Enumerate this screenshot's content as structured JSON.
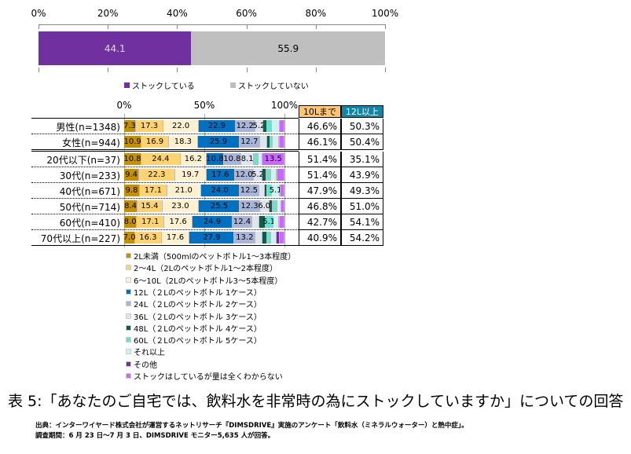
{
  "chart_data": [
    {
      "type": "bar",
      "orientation": "horizontal",
      "stacked": true,
      "xticks": [
        "0%",
        "20%",
        "40%",
        "60%",
        "80%",
        "100%"
      ],
      "xlim": [
        0,
        100
      ],
      "series": [
        {
          "name": "ストックしている",
          "values": [
            44.1
          ],
          "color": "#7030A0"
        },
        {
          "name": "ストックしていない",
          "values": [
            55.9
          ],
          "color": "#BFBFBF"
        }
      ],
      "legend_position": "bottom"
    },
    {
      "type": "bar",
      "orientation": "horizontal",
      "stacked": true,
      "xticks": [
        "0%",
        "50%",
        "100%"
      ],
      "xlim": [
        0,
        100
      ],
      "categories": [
        "男性(n=1348)",
        "女性(n=944)",
        "20代以下(n=37)",
        "30代(n=233)",
        "40代(n=671)",
        "50代(n=714)",
        "60代(n=410)",
        "70代以上(n=227)"
      ],
      "series": [
        {
          "name": "2L未満（500mlのペットボトル1～3本程度）",
          "color": "#C59000",
          "values": [
            7.3,
            10.9,
            10.8,
            9.4,
            9.8,
            8.4,
            8.0,
            7.0
          ]
        },
        {
          "name": "2～4L（2Lのペットボトル1～2本程度）",
          "color": "#FFD470",
          "values": [
            17.3,
            16.9,
            24.4,
            22.3,
            17.1,
            15.4,
            17.1,
            16.3
          ]
        },
        {
          "name": "6～10L（2Lのペットボトル3～5本程度）",
          "color": "#FFF0CF",
          "values": [
            22.0,
            18.3,
            16.2,
            19.7,
            21.0,
            23.0,
            17.6,
            17.6
          ]
        },
        {
          "name": "12L（２Lのペットボトル 1ケース）",
          "color": "#0070C0",
          "values": [
            22.9,
            25.9,
            10.8,
            17.6,
            24.0,
            25.5,
            24.9,
            27.9
          ]
        },
        {
          "name": "24L（２Lのペットボトル 2ケース）",
          "color": "#A9B4D9",
          "values": [
            12.2,
            12.7,
            10.8,
            12.0,
            12.5,
            12.3,
            12.4,
            13.2
          ]
        },
        {
          "name": "36L（２Lのペットボトル 3ケース）",
          "color": "#E0E4F1",
          "values": [
            5.2,
            4.5,
            8.1,
            5.2,
            3.2,
            6.0,
            4.5,
            4.5
          ]
        },
        {
          "name": "48L（２Lのペットボトル 4ケース）",
          "color": "#135A4A",
          "values": [
            2.5,
            1.8,
            0,
            2.5,
            1.5,
            2.0,
            3.5,
            2.5
          ]
        },
        {
          "name": "60L（２Lのペットボトル 5ケース）",
          "color": "#66E3D0",
          "values": [
            3.0,
            1.5,
            2.7,
            3.0,
            3.0,
            3.0,
            5.1,
            2.5
          ]
        },
        {
          "name": "それ以上",
          "color": "#CCF3F0",
          "values": [
            4.5,
            4.0,
            2.7,
            3.6,
            5.1,
            2.2,
            3.7,
            3.6
          ]
        },
        {
          "name": "その他",
          "color": "#7030A0",
          "values": [
            0.3,
            0.5,
            0,
            0.5,
            0.3,
            0.2,
            0.2,
            2.2
          ]
        },
        {
          "name": "ストックはしているが量は全くわからない",
          "color": "#CC66FF",
          "values": [
            2.8,
            3.0,
            13.5,
            4.2,
            2.5,
            2.0,
            3.0,
            2.7
          ]
        }
      ],
      "table": {
        "headers": [
          "10Lまで",
          "12L以上"
        ],
        "header_colors": [
          "#FFC66E",
          "#0E86A8"
        ],
        "rows": [
          [
            "46.6%",
            "50.3%"
          ],
          [
            "46.1%",
            "50.4%"
          ],
          [
            "51.4%",
            "35.1%"
          ],
          [
            "51.4%",
            "43.9%"
          ],
          [
            "47.9%",
            "49.3%"
          ],
          [
            "46.8%",
            "51.0%"
          ],
          [
            "42.7%",
            "54.1%"
          ],
          [
            "40.9%",
            "54.2%"
          ]
        ]
      },
      "legend_position": "bottom"
    }
  ],
  "caption": {
    "title": "表 5:「あなたのご自宅では、飲料水を非常時の為にストックしていますか」についての回答",
    "source": "出典：インターワイヤード株式会社が運営するネットリサーチ『DIMSDRIVE』実施のアンケート「飲料水（ミネラルウォーター）と熱中症」。",
    "period": "調査期間：6 月 23 日～7 月 3 日、DIMSDRIVE モニター5,635 人が回答。"
  }
}
